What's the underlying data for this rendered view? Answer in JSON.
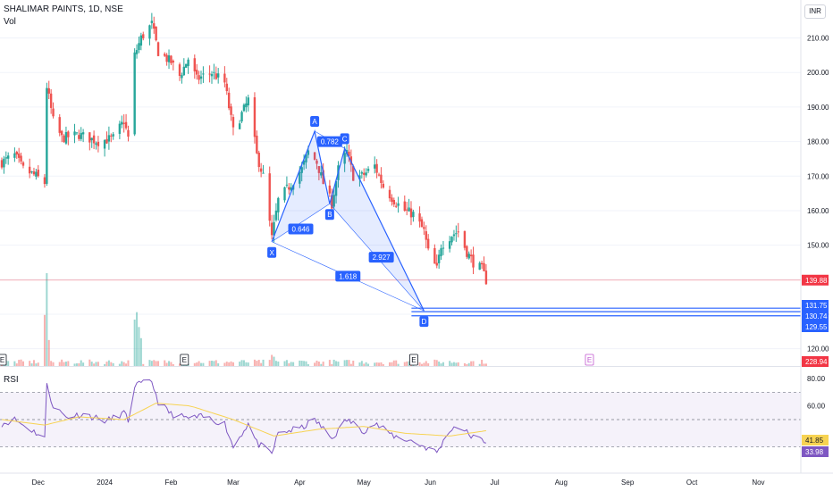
{
  "symbol_title": "SHALIMAR PAINTS, 1D, NSE",
  "volume_label": "Vol",
  "rsi_label": "RSI",
  "currency": "INR",
  "colors": {
    "up": "#26a69a",
    "down": "#ef5350",
    "pattern": "#2962ff",
    "rsi_line": "#7e57c2",
    "rsi_ma": "#f7d352",
    "last_price": "#f23645",
    "volume_tag": "#f23645"
  },
  "chart_data": [
    {
      "type": "candlestick",
      "title": "SHALIMAR PAINTS, 1D, NSE",
      "ylabel": "INR",
      "ylim": [
        115,
        221
      ],
      "y_ticks": [
        120,
        130,
        140,
        150,
        160,
        170,
        180,
        190,
        200,
        210
      ],
      "x_ticks": [
        "Dec",
        "2024",
        "Feb",
        "Mar",
        "Apr",
        "May",
        "Jun",
        "Jul",
        "Aug",
        "Sep",
        "Oct",
        "Nov"
      ],
      "x_range": [
        "2023-11-14",
        "2024-11-15"
      ],
      "last_price": 139.88,
      "last_price_label": "139.88",
      "close_anchors": [
        [
          "2023-11-14",
          174
        ],
        [
          "2023-11-20",
          176
        ],
        [
          "2023-11-24",
          172
        ],
        [
          "2023-11-30",
          170
        ],
        [
          "2023-12-04",
          168
        ],
        [
          "2023-12-05",
          196
        ],
        [
          "2023-12-08",
          186
        ],
        [
          "2023-12-12",
          181
        ],
        [
          "2023-12-20",
          182
        ],
        [
          "2023-12-29",
          180
        ],
        [
          "2024-01-05",
          181
        ],
        [
          "2024-01-10",
          186
        ],
        [
          "2024-01-12",
          181
        ],
        [
          "2024-01-15",
          205
        ],
        [
          "2024-01-18",
          210
        ],
        [
          "2024-01-23",
          214
        ],
        [
          "2024-01-26",
          206
        ],
        [
          "2024-02-01",
          203
        ],
        [
          "2024-02-05",
          199
        ],
        [
          "2024-02-09",
          204
        ],
        [
          "2024-02-13",
          198
        ],
        [
          "2024-02-16",
          199
        ],
        [
          "2024-02-20",
          200
        ],
        [
          "2024-02-26",
          197
        ],
        [
          "2024-03-01",
          183
        ],
        [
          "2024-03-05",
          188
        ],
        [
          "2024-03-08",
          192
        ],
        [
          "2024-03-12",
          176
        ],
        [
          "2024-03-15",
          170
        ],
        [
          "2024-03-19",
          152
        ],
        [
          "2024-03-22",
          163
        ],
        [
          "2024-03-27",
          167
        ],
        [
          "2024-04-02",
          172
        ],
        [
          "2024-04-05",
          177
        ],
        [
          "2024-04-09",
          174
        ],
        [
          "2024-04-12",
          168
        ],
        [
          "2024-04-16",
          162
        ],
        [
          "2024-04-19",
          172
        ],
        [
          "2024-04-23",
          177
        ],
        [
          "2024-04-26",
          170
        ],
        [
          "2024-04-30",
          170
        ],
        [
          "2024-05-06",
          173
        ],
        [
          "2024-05-10",
          167
        ],
        [
          "2024-05-15",
          163
        ],
        [
          "2024-05-20",
          160
        ],
        [
          "2024-05-24",
          159
        ],
        [
          "2024-05-29",
          154
        ],
        [
          "2024-05-31",
          148
        ],
        [
          "2024-06-04",
          143
        ],
        [
          "2024-06-06",
          150
        ],
        [
          "2024-06-11",
          153
        ],
        [
          "2024-06-14",
          154
        ],
        [
          "2024-06-18",
          148
        ],
        [
          "2024-06-21",
          145
        ],
        [
          "2024-06-25",
          143
        ],
        [
          "2024-06-27",
          139.88
        ]
      ],
      "harmonic_pattern": {
        "points": [
          {
            "label": "X",
            "date": "2024-03-19",
            "value": 151
          },
          {
            "label": "A",
            "date": "2024-04-08",
            "value": 183
          },
          {
            "label": "B",
            "date": "2024-04-15",
            "value": 162
          },
          {
            "label": "C",
            "date": "2024-04-22",
            "value": 178
          },
          {
            "label": "D",
            "date": "2024-05-29",
            "value": 131
          }
        ],
        "ratios": [
          "0.646",
          "0.782",
          "2.927",
          "1.618"
        ],
        "levels": [
          {
            "value": 131.75,
            "label": "131.75"
          },
          {
            "value": 130.74,
            "label": "130.74"
          },
          {
            "value": 129.55,
            "label": "129.55"
          }
        ]
      },
      "earnings_markers": [
        "2023-11-14",
        "2024-02-07",
        "2024-05-24",
        "2024-08-14"
      ]
    },
    {
      "type": "bar",
      "title": "Vol",
      "last_volume_label": "228.94 K",
      "spikes": [
        [
          "2023-12-04",
          0.55
        ],
        [
          "2023-12-05",
          1.0
        ],
        [
          "2023-12-06",
          0.28
        ],
        [
          "2024-01-15",
          0.5
        ],
        [
          "2024-01-16",
          0.58
        ],
        [
          "2024-01-17",
          0.42
        ],
        [
          "2024-01-18",
          0.3
        ],
        [
          "2024-03-19",
          0.12
        ],
        [
          "2024-03-20",
          0.1
        ]
      ]
    },
    {
      "type": "line",
      "title": "RSI",
      "ylim": [
        20,
        80
      ],
      "y_ticks": [
        "80.00",
        "60.00"
      ],
      "bands": [
        70,
        50,
        30
      ],
      "rsi_value_label": "33.98",
      "rsi_ma_label": "41.85",
      "series": [
        {
          "name": "RSI",
          "anchors": [
            [
              "2023-11-14",
              47
            ],
            [
              "2023-11-20",
              50
            ],
            [
              "2023-11-27",
              43
            ],
            [
              "2023-12-04",
              37
            ],
            [
              "2023-12-05",
              75
            ],
            [
              "2023-12-08",
              60
            ],
            [
              "2023-12-14",
              52
            ],
            [
              "2023-12-22",
              54
            ],
            [
              "2024-01-02",
              49
            ],
            [
              "2024-01-10",
              55
            ],
            [
              "2024-01-12",
              49
            ],
            [
              "2024-01-15",
              75
            ],
            [
              "2024-01-18",
              76
            ],
            [
              "2024-01-23",
              78
            ],
            [
              "2024-01-26",
              63
            ],
            [
              "2024-02-01",
              54
            ],
            [
              "2024-02-09",
              51
            ],
            [
              "2024-02-16",
              52
            ],
            [
              "2024-02-26",
              47
            ],
            [
              "2024-03-01",
              30
            ],
            [
              "2024-03-05",
              40
            ],
            [
              "2024-03-08",
              47
            ],
            [
              "2024-03-12",
              33
            ],
            [
              "2024-03-19",
              25
            ],
            [
              "2024-03-22",
              40
            ],
            [
              "2024-04-02",
              44
            ],
            [
              "2024-04-08",
              50
            ],
            [
              "2024-04-16",
              36
            ],
            [
              "2024-04-23",
              50
            ],
            [
              "2024-05-01",
              42
            ],
            [
              "2024-05-06",
              47
            ],
            [
              "2024-05-15",
              38
            ],
            [
              "2024-05-24",
              34
            ],
            [
              "2024-06-04",
              26
            ],
            [
              "2024-06-11",
              44
            ],
            [
              "2024-06-14",
              45
            ],
            [
              "2024-06-21",
              37
            ],
            [
              "2024-06-27",
              34
            ]
          ]
        },
        {
          "name": "RSI-based MA",
          "anchors": [
            [
              "2023-11-14",
              50
            ],
            [
              "2023-12-04",
              46
            ],
            [
              "2023-12-20",
              52
            ],
            [
              "2024-01-10",
              50
            ],
            [
              "2024-01-25",
              62
            ],
            [
              "2024-02-10",
              60
            ],
            [
              "2024-03-01",
              50
            ],
            [
              "2024-03-20",
              38
            ],
            [
              "2024-04-10",
              43
            ],
            [
              "2024-05-01",
              45
            ],
            [
              "2024-05-20",
              40
            ],
            [
              "2024-06-10",
              38
            ],
            [
              "2024-06-27",
              41.85
            ]
          ]
        }
      ]
    }
  ]
}
